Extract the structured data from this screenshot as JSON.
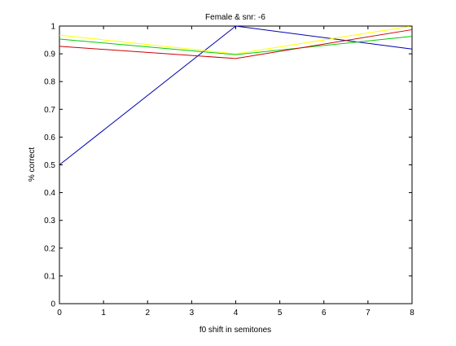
{
  "chart_data": {
    "type": "line",
    "title": "Female & snr: -6",
    "xlabel": "f0 shift in semitones",
    "ylabel": "% correct",
    "xlim": [
      0,
      8
    ],
    "ylim": [
      0,
      1
    ],
    "xticks": [
      0,
      1,
      2,
      3,
      4,
      5,
      6,
      7,
      8
    ],
    "yticks": [
      0,
      0.1,
      0.2,
      0.3,
      0.4,
      0.5,
      0.6,
      0.7,
      0.8,
      0.9,
      1
    ],
    "grid": false,
    "x": [
      0,
      4,
      8
    ],
    "series": [
      {
        "color": "#0000b0",
        "values": [
          0.5,
          1.0,
          0.917
        ]
      },
      {
        "color": "#ffff00",
        "values": [
          0.967,
          0.9,
          1.0
        ]
      },
      {
        "color": "#00cc00",
        "values": [
          0.953,
          0.897,
          0.963
        ]
      },
      {
        "color": "#cc0000",
        "values": [
          0.927,
          0.883,
          0.987
        ]
      }
    ]
  }
}
